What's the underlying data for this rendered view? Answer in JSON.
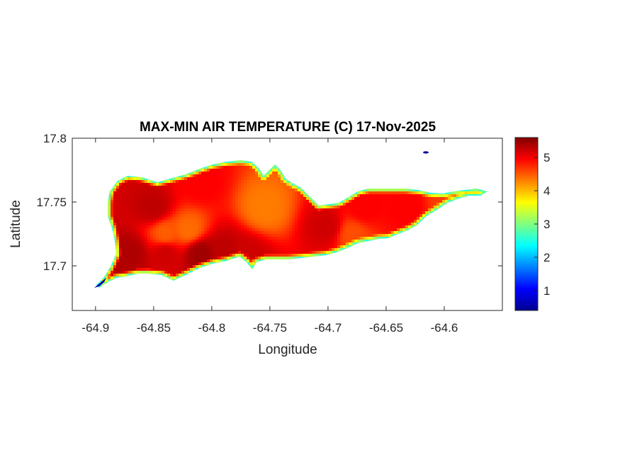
{
  "chart_data": {
    "type": "heatmap",
    "title": "MAX-MIN AIR TEMPERATURE (C) 17-Nov-2025",
    "xlabel": "Longitude",
    "ylabel": "Latitude",
    "xlim": [
      -64.92,
      -64.55
    ],
    "ylim": [
      17.665,
      17.8
    ],
    "xticks": [
      -64.9,
      -64.85,
      -64.8,
      -64.75,
      -64.7,
      -64.65,
      -64.6
    ],
    "xtick_labels": [
      "-64.9",
      "-64.85",
      "-64.8",
      "-64.75",
      "-64.7",
      "-64.65",
      "-64.6"
    ],
    "yticks": [
      17.7,
      17.75,
      17.8
    ],
    "ytick_labels": [
      "17.7",
      "17.75",
      "17.8"
    ],
    "grid": false,
    "colormap": "jet",
    "colorbar": {
      "range": [
        0.4,
        5.6
      ],
      "ticks": [
        1,
        2,
        3,
        4,
        5
      ],
      "tick_labels": [
        "1",
        "2",
        "3",
        "4",
        "5"
      ],
      "colors": [
        "#00008f",
        "#0000ff",
        "#0080ff",
        "#00ffff",
        "#80ff80",
        "#ffff00",
        "#ff8000",
        "#ff0000",
        "#800000"
      ]
    },
    "hotspots": [
      {
        "lon": -64.85,
        "lat": 17.745,
        "value": 5.4
      },
      {
        "lon": -64.87,
        "lat": 17.71,
        "value": 5.5
      },
      {
        "lon": -64.81,
        "lat": 17.71,
        "value": 5.6
      },
      {
        "lon": -64.79,
        "lat": 17.712,
        "value": 5.4
      },
      {
        "lon": -64.84,
        "lat": 17.71,
        "value": 5.3
      },
      {
        "lon": -64.77,
        "lat": 17.708,
        "value": 5.3
      },
      {
        "lon": -64.81,
        "lat": 17.765,
        "value": 5.0
      },
      {
        "lon": -64.7,
        "lat": 17.73,
        "value": 5.3
      },
      {
        "lon": -64.67,
        "lat": 17.745,
        "value": 5.0
      },
      {
        "lon": -64.63,
        "lat": 17.745,
        "value": 5.0
      },
      {
        "lon": -64.755,
        "lat": 17.745,
        "value": 4.2
      },
      {
        "lon": -64.82,
        "lat": 17.728,
        "value": 4.3
      },
      {
        "lon": -64.84,
        "lat": 17.725,
        "value": 4.4
      },
      {
        "lon": -64.68,
        "lat": 17.725,
        "value": 4.5
      },
      {
        "lon": -64.6,
        "lat": 17.748,
        "value": 4.6
      }
    ],
    "edge_value": 2.5,
    "default_value": 4.8
  }
}
